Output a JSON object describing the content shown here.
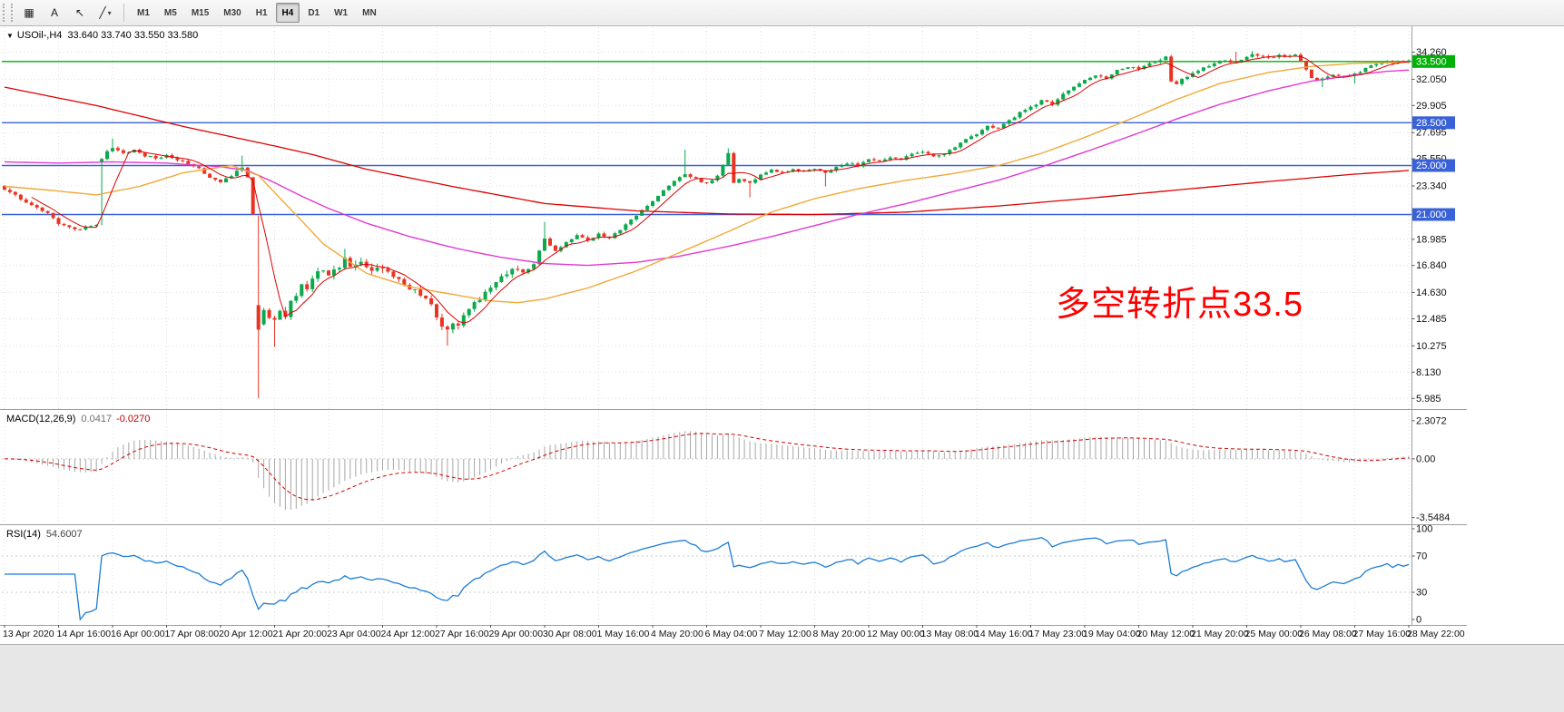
{
  "toolbar": {
    "tools": [
      {
        "id": "chart-grid",
        "glyph": "▦"
      },
      {
        "id": "text-tool",
        "glyph": "A"
      },
      {
        "id": "cursor-tool",
        "glyph": "↖"
      },
      {
        "id": "draw-tools",
        "glyph": "╱",
        "caret": "▾"
      }
    ],
    "timeframes": [
      "M1",
      "M5",
      "M15",
      "M30",
      "H1",
      "H4",
      "D1",
      "W1",
      "MN"
    ],
    "active_timeframe": "H4"
  },
  "chart": {
    "collapse_arrow": "▼",
    "symbol_period": "USOil-,H4",
    "ohlc_text": "33.640 33.740 33.550 33.580",
    "price_ticks": [
      "34.260",
      "32.050",
      "29.905",
      "27.695",
      "25.550",
      "23.340",
      "18.985",
      "16.840",
      "14.630",
      "12.485",
      "10.275",
      "8.130",
      "5.985"
    ],
    "hlines": [
      {
        "label": "33.500",
        "value": 33.5,
        "color": "#00b007"
      },
      {
        "label": "28.500",
        "value": 28.5,
        "color": "#3a62d8"
      },
      {
        "label": "25.000",
        "value": 25.0,
        "color": "#3a62d8"
      },
      {
        "label": "21.000",
        "value": 21.0,
        "color": "#3a62d8"
      }
    ],
    "annotation": {
      "text": "多空转折点33.5",
      "color": "#ff0000"
    },
    "date_labels": [
      "13 Apr 2020",
      "14 Apr 16:00",
      "16 Apr 00:00",
      "17 Apr 08:00",
      "20 Apr 12:00",
      "21 Apr 20:00",
      "23 Apr 04:00",
      "24 Apr 12:00",
      "27 Apr 16:00",
      "29 Apr 00:00",
      "30 Apr 08:00",
      "1 May 16:00",
      "4 May 20:00",
      "6 May 04:00",
      "7 May 12:00",
      "8 May 20:00",
      "12 May 00:00",
      "13 May 08:00",
      "14 May 16:00",
      "17 May 23:00",
      "19 May 04:00",
      "20 May 12:00",
      "21 May 20:00",
      "25 May 00:00",
      "26 May 08:00",
      "27 May 16:00",
      "28 May 22:00"
    ]
  },
  "macd": {
    "label": "MACD(12,26,9)",
    "value_main": "0.0417",
    "value_signal": "-0.0270",
    "axis": [
      [
        "2.3072",
        2.3072
      ],
      [
        "0.00",
        0
      ],
      [
        "-3.5484",
        -3.5484
      ]
    ]
  },
  "rsi": {
    "label": "RSI(14)",
    "value": "54.6007",
    "axis": [
      [
        "100",
        100
      ],
      [
        "70",
        70
      ],
      [
        "30",
        30
      ],
      [
        "0",
        0
      ]
    ],
    "levels": [
      70,
      30
    ]
  },
  "chart_data": {
    "type": "candlestick",
    "symbol": "USOil-",
    "timeframe": "H4",
    "candle_count": 261,
    "last_close": 33.58,
    "close_waypoints": [
      [
        0,
        23.1
      ],
      [
        2,
        22.6
      ],
      [
        4,
        22.0
      ],
      [
        6,
        21.6
      ],
      [
        8,
        21.1
      ],
      [
        10,
        20.3
      ],
      [
        12,
        19.9
      ],
      [
        14,
        19.8
      ],
      [
        16,
        20.1
      ],
      [
        17,
        20.2
      ],
      [
        18,
        25.6
      ],
      [
        19,
        26.2
      ],
      [
        20,
        26.5
      ],
      [
        22,
        26.0
      ],
      [
        24,
        26.3
      ],
      [
        26,
        25.8
      ],
      [
        28,
        25.6
      ],
      [
        30,
        25.8
      ],
      [
        32,
        25.5
      ],
      [
        34,
        25.2
      ],
      [
        36,
        24.8
      ],
      [
        38,
        24.0
      ],
      [
        40,
        23.6
      ],
      [
        42,
        24.2
      ],
      [
        44,
        24.8
      ],
      [
        45,
        24.0
      ],
      [
        46,
        21.2
      ],
      [
        47,
        12.0
      ],
      [
        48,
        13.2
      ],
      [
        49,
        12.6
      ],
      [
        50,
        12.4
      ],
      [
        51,
        13.0
      ],
      [
        52,
        12.6
      ],
      [
        53,
        13.8
      ],
      [
        54,
        14.5
      ],
      [
        55,
        15.3
      ],
      [
        56,
        14.9
      ],
      [
        57,
        15.8
      ],
      [
        58,
        16.4
      ],
      [
        60,
        16.2
      ],
      [
        62,
        16.8
      ],
      [
        63,
        17.3
      ],
      [
        64,
        16.9
      ],
      [
        66,
        17.0
      ],
      [
        68,
        16.4
      ],
      [
        70,
        16.6
      ],
      [
        72,
        15.9
      ],
      [
        74,
        15.3
      ],
      [
        76,
        14.8
      ],
      [
        78,
        14.2
      ],
      [
        79,
        13.6
      ],
      [
        80,
        12.6
      ],
      [
        81,
        12.0
      ],
      [
        82,
        11.6
      ],
      [
        83,
        12.2
      ],
      [
        84,
        12.0
      ],
      [
        85,
        12.8
      ],
      [
        86,
        13.4
      ],
      [
        88,
        14.2
      ],
      [
        90,
        15.0
      ],
      [
        92,
        15.8
      ],
      [
        94,
        16.5
      ],
      [
        96,
        16.2
      ],
      [
        98,
        17.0
      ],
      [
        100,
        19.0
      ],
      [
        101,
        18.4
      ],
      [
        102,
        18.0
      ],
      [
        104,
        18.8
      ],
      [
        106,
        19.3
      ],
      [
        108,
        18.9
      ],
      [
        110,
        19.4
      ],
      [
        112,
        19.1
      ],
      [
        114,
        19.8
      ],
      [
        116,
        20.6
      ],
      [
        118,
        21.3
      ],
      [
        120,
        22.1
      ],
      [
        122,
        23.0
      ],
      [
        124,
        23.8
      ],
      [
        126,
        24.3
      ],
      [
        128,
        23.9
      ],
      [
        130,
        23.5
      ],
      [
        132,
        24.2
      ],
      [
        134,
        26.0
      ],
      [
        135,
        23.6
      ],
      [
        136,
        23.9
      ],
      [
        138,
        23.6
      ],
      [
        140,
        24.2
      ],
      [
        142,
        24.6
      ],
      [
        144,
        24.4
      ],
      [
        146,
        24.7
      ],
      [
        148,
        24.5
      ],
      [
        150,
        24.8
      ],
      [
        152,
        24.4
      ],
      [
        154,
        24.9
      ],
      [
        156,
        25.2
      ],
      [
        158,
        25.0
      ],
      [
        160,
        25.5
      ],
      [
        162,
        25.3
      ],
      [
        164,
        25.7
      ],
      [
        166,
        25.5
      ],
      [
        168,
        25.9
      ],
      [
        170,
        26.2
      ],
      [
        172,
        25.8
      ],
      [
        174,
        26.0
      ],
      [
        176,
        26.5
      ],
      [
        178,
        27.1
      ],
      [
        180,
        27.6
      ],
      [
        182,
        28.2
      ],
      [
        184,
        28.0
      ],
      [
        186,
        28.7
      ],
      [
        188,
        29.3
      ],
      [
        190,
        29.8
      ],
      [
        192,
        30.3
      ],
      [
        194,
        30.0
      ],
      [
        196,
        30.8
      ],
      [
        198,
        31.4
      ],
      [
        200,
        32.0
      ],
      [
        202,
        32.4
      ],
      [
        204,
        32.1
      ],
      [
        206,
        32.8
      ],
      [
        208,
        33.1
      ],
      [
        210,
        32.9
      ],
      [
        212,
        33.3
      ],
      [
        214,
        33.6
      ],
      [
        215,
        33.9
      ],
      [
        216,
        31.9
      ],
      [
        217,
        31.7
      ],
      [
        218,
        32.0
      ],
      [
        220,
        32.6
      ],
      [
        222,
        33.0
      ],
      [
        224,
        33.3
      ],
      [
        226,
        33.6
      ],
      [
        228,
        33.4
      ],
      [
        230,
        33.8
      ],
      [
        231,
        34.1
      ],
      [
        232,
        33.9
      ],
      [
        234,
        33.8
      ],
      [
        236,
        34.0
      ],
      [
        238,
        33.9
      ],
      [
        239,
        34.1
      ],
      [
        240,
        33.6
      ],
      [
        241,
        32.8
      ],
      [
        242,
        32.2
      ],
      [
        243,
        31.9
      ],
      [
        244,
        32.1
      ],
      [
        246,
        32.4
      ],
      [
        248,
        32.2
      ],
      [
        250,
        32.5
      ],
      [
        252,
        32.9
      ],
      [
        254,
        33.3
      ],
      [
        256,
        33.5
      ],
      [
        257,
        33.3
      ],
      [
        258,
        33.6
      ],
      [
        259,
        33.5
      ],
      [
        260,
        33.58
      ]
    ],
    "key_candles": [
      {
        "i": 18,
        "open": 25.3
      },
      {
        "i": 20,
        "high": 27.2
      },
      {
        "i": 44,
        "high": 25.8
      },
      {
        "i": 47,
        "open": 13.6,
        "high": 20.9,
        "low": 6.0,
        "close": 11.6
      },
      {
        "i": 50,
        "low": 10.2
      },
      {
        "i": 63,
        "high": 18.2
      },
      {
        "i": 82,
        "low": 10.3
      },
      {
        "i": 100,
        "high": 20.4
      },
      {
        "i": 126,
        "high": 26.3
      },
      {
        "i": 134,
        "high": 26.4
      },
      {
        "i": 138,
        "low": 22.4
      },
      {
        "i": 152,
        "low": 23.3
      },
      {
        "i": 228,
        "high": 34.3
      },
      {
        "i": 231,
        "high": 34.35
      },
      {
        "i": 244,
        "low": 31.4
      },
      {
        "i": 250,
        "low": 31.7
      }
    ],
    "moving_averages": {
      "slow_red": {
        "color": "#dd0000",
        "points": [
          [
            0,
            31.4
          ],
          [
            17,
            29.9
          ],
          [
            33,
            28.2
          ],
          [
            50,
            26.6
          ],
          [
            57,
            25.9
          ],
          [
            67,
            24.7
          ],
          [
            84,
            23.2
          ],
          [
            100,
            21.9
          ],
          [
            117,
            21.3
          ],
          [
            134,
            21.05
          ],
          [
            150,
            21.0
          ],
          [
            167,
            21.2
          ],
          [
            184,
            21.7
          ],
          [
            200,
            22.3
          ],
          [
            217,
            23.0
          ],
          [
            234,
            23.7
          ],
          [
            250,
            24.3
          ],
          [
            260,
            24.6
          ]
        ]
      },
      "magenta": {
        "color": "#e23ad0",
        "points": [
          [
            0,
            25.3
          ],
          [
            10,
            25.2
          ],
          [
            20,
            25.3
          ],
          [
            30,
            25.2
          ],
          [
            40,
            24.9
          ],
          [
            45,
            24.6
          ],
          [
            50,
            23.6
          ],
          [
            55,
            22.5
          ],
          [
            60,
            21.5
          ],
          [
            67,
            20.3
          ],
          [
            75,
            19.2
          ],
          [
            84,
            18.2
          ],
          [
            92,
            17.5
          ],
          [
            100,
            17.0
          ],
          [
            108,
            16.85
          ],
          [
            117,
            17.1
          ],
          [
            125,
            17.6
          ],
          [
            134,
            18.4
          ],
          [
            142,
            19.2
          ],
          [
            150,
            20.1
          ],
          [
            158,
            21.0
          ],
          [
            167,
            21.9
          ],
          [
            175,
            22.8
          ],
          [
            184,
            23.8
          ],
          [
            192,
            24.9
          ],
          [
            200,
            26.1
          ],
          [
            209,
            27.5
          ],
          [
            217,
            28.8
          ],
          [
            225,
            30.0
          ],
          [
            234,
            31.1
          ],
          [
            242,
            31.9
          ],
          [
            250,
            32.4
          ],
          [
            256,
            32.7
          ],
          [
            260,
            32.8
          ]
        ]
      },
      "orange": {
        "color": "#efa93a",
        "points": [
          [
            0,
            23.3
          ],
          [
            8,
            23.0
          ],
          [
            17,
            22.6
          ],
          [
            25,
            23.3
          ],
          [
            33,
            24.4
          ],
          [
            42,
            25.0
          ],
          [
            47,
            24.2
          ],
          [
            50,
            22.8
          ],
          [
            55,
            20.5
          ],
          [
            59,
            18.6
          ],
          [
            67,
            16.2
          ],
          [
            75,
            15.1
          ],
          [
            84,
            14.4
          ],
          [
            90,
            13.95
          ],
          [
            95,
            13.8
          ],
          [
            100,
            14.1
          ],
          [
            108,
            15.0
          ],
          [
            117,
            16.4
          ],
          [
            125,
            17.9
          ],
          [
            134,
            19.6
          ],
          [
            142,
            21.2
          ],
          [
            150,
            22.3
          ],
          [
            158,
            23.1
          ],
          [
            167,
            23.8
          ],
          [
            175,
            24.3
          ],
          [
            184,
            25.0
          ],
          [
            192,
            26.0
          ],
          [
            200,
            27.3
          ],
          [
            209,
            28.9
          ],
          [
            217,
            30.4
          ],
          [
            225,
            31.7
          ],
          [
            234,
            32.6
          ],
          [
            242,
            33.1
          ],
          [
            250,
            33.35
          ],
          [
            256,
            33.4
          ],
          [
            260,
            33.45
          ]
        ]
      },
      "fast_red": {
        "color": "#dd0000",
        "sma_period": 6
      }
    },
    "colors": {
      "up": "#0ba94c",
      "down": "#ea3423",
      "rsi_line": "#1c7cd6",
      "macd_hist": "#a6a6a6",
      "macd_signal": "#d40000",
      "grid": "#e0e0e0"
    }
  }
}
